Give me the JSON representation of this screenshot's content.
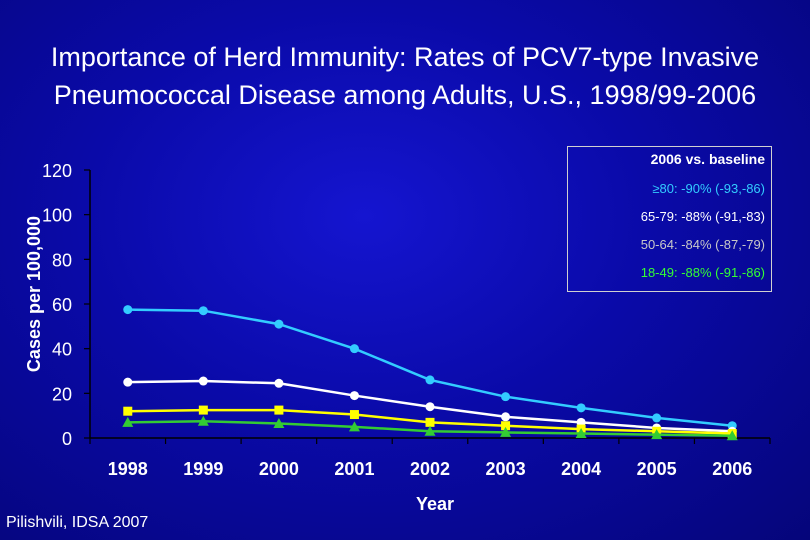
{
  "title": {
    "line1": "Importance of Herd Immunity: Rates of PCV7-type Invasive",
    "line2": "Pneumococcal Disease among Adults, U.S., 1998/99-2006"
  },
  "source": "Pilishvili, IDSA 2007",
  "legend": {
    "title": "2006 vs. baseline",
    "rows": [
      {
        "label": "≥80:",
        "value": "-90% (-93,-86)",
        "color": "#33ccff"
      },
      {
        "label": "65-79:",
        "value": "-88% (-91,-83)",
        "color": "#ffffff"
      },
      {
        "label": "50-64:",
        "value": "-84% (-87,-79)",
        "color": "#c8c8c8"
      },
      {
        "label": "18-49:",
        "value": "-88% (-91,-86)",
        "color": "#33ff33"
      }
    ]
  },
  "chart_data": {
    "type": "line",
    "xlabel": "Year",
    "ylabel": "Cases per 100,000",
    "categories": [
      "1998",
      "1999",
      "2000",
      "2001",
      "2002",
      "2003",
      "2004",
      "2005",
      "2006"
    ],
    "ylim": [
      0,
      120
    ],
    "yticks": [
      "0",
      "20",
      "40",
      "60",
      "80",
      "100",
      "120"
    ],
    "grid": false,
    "series": [
      {
        "values": [
          57.5,
          57,
          51,
          40,
          26,
          18.5,
          13.5,
          9,
          5.5
        ],
        "color": "#33ccff",
        "marker": "circle"
      },
      {
        "values": [
          25,
          25.5,
          24.5,
          19,
          14,
          9.5,
          7,
          4.5,
          3
        ],
        "color": "#ffffff",
        "marker": "circle"
      },
      {
        "values": [
          12,
          12.5,
          12.5,
          10.5,
          7,
          5.5,
          4,
          3,
          2
        ],
        "color": "#ffff00",
        "marker": "square"
      },
      {
        "values": [
          7,
          7.5,
          6.5,
          5,
          3,
          2.5,
          2,
          1.5,
          1
        ],
        "color": "#33cc33",
        "marker": "triangle"
      }
    ]
  }
}
